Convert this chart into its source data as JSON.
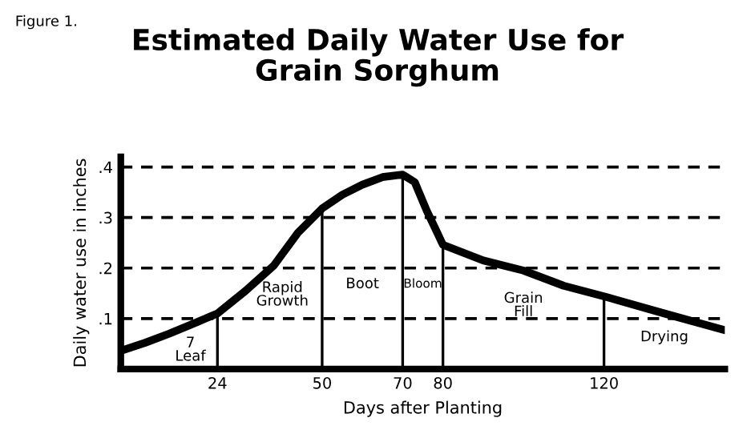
{
  "chart_data": {
    "type": "line",
    "title": "Estimated Daily Water Use for\nGrain Sorghum",
    "xlabel": "Days after Planting",
    "ylabel": "Daily water use in inches",
    "x": [
      0,
      6,
      12,
      18,
      24,
      31,
      38,
      44,
      50,
      55,
      60,
      65,
      70,
      73,
      76,
      78,
      80,
      90,
      100,
      110,
      120,
      135,
      150
    ],
    "series": [
      {
        "color": "#000000",
        "values": [
          0.036,
          0.052,
          0.07,
          0.09,
          0.11,
          0.155,
          0.205,
          0.27,
          0.318,
          0.345,
          0.365,
          0.38,
          0.385,
          0.37,
          0.313,
          0.28,
          0.246,
          0.215,
          0.195,
          0.165,
          0.144,
          0.11,
          0.077
        ]
      }
    ],
    "xlim": [
      0,
      150
    ],
    "xticks": [
      24,
      50,
      70,
      80,
      120
    ],
    "ylim": [
      0,
      0.42
    ],
    "yticks": [
      {
        "value": 0.1,
        "label": ".1"
      },
      {
        "value": 0.2,
        "label": ".2"
      },
      {
        "value": 0.3,
        "label": ".3"
      },
      {
        "value": 0.4,
        "label": ".4"
      }
    ],
    "grid": "y",
    "line_style": "solid",
    "marker": "none",
    "legend": false,
    "ref_lines": [
      {
        "axis": "x",
        "value": 24
      },
      {
        "axis": "x",
        "value": 50
      },
      {
        "axis": "x",
        "value": 70
      },
      {
        "axis": "x",
        "value": 80
      },
      {
        "axis": "x",
        "value": 120
      }
    ],
    "annotations": [
      "Figure 1.",
      "7\nLeaf",
      "Rapid\nGrowth",
      "Boot",
      "Bloom",
      "Grain\nFill",
      "Drying"
    ]
  }
}
